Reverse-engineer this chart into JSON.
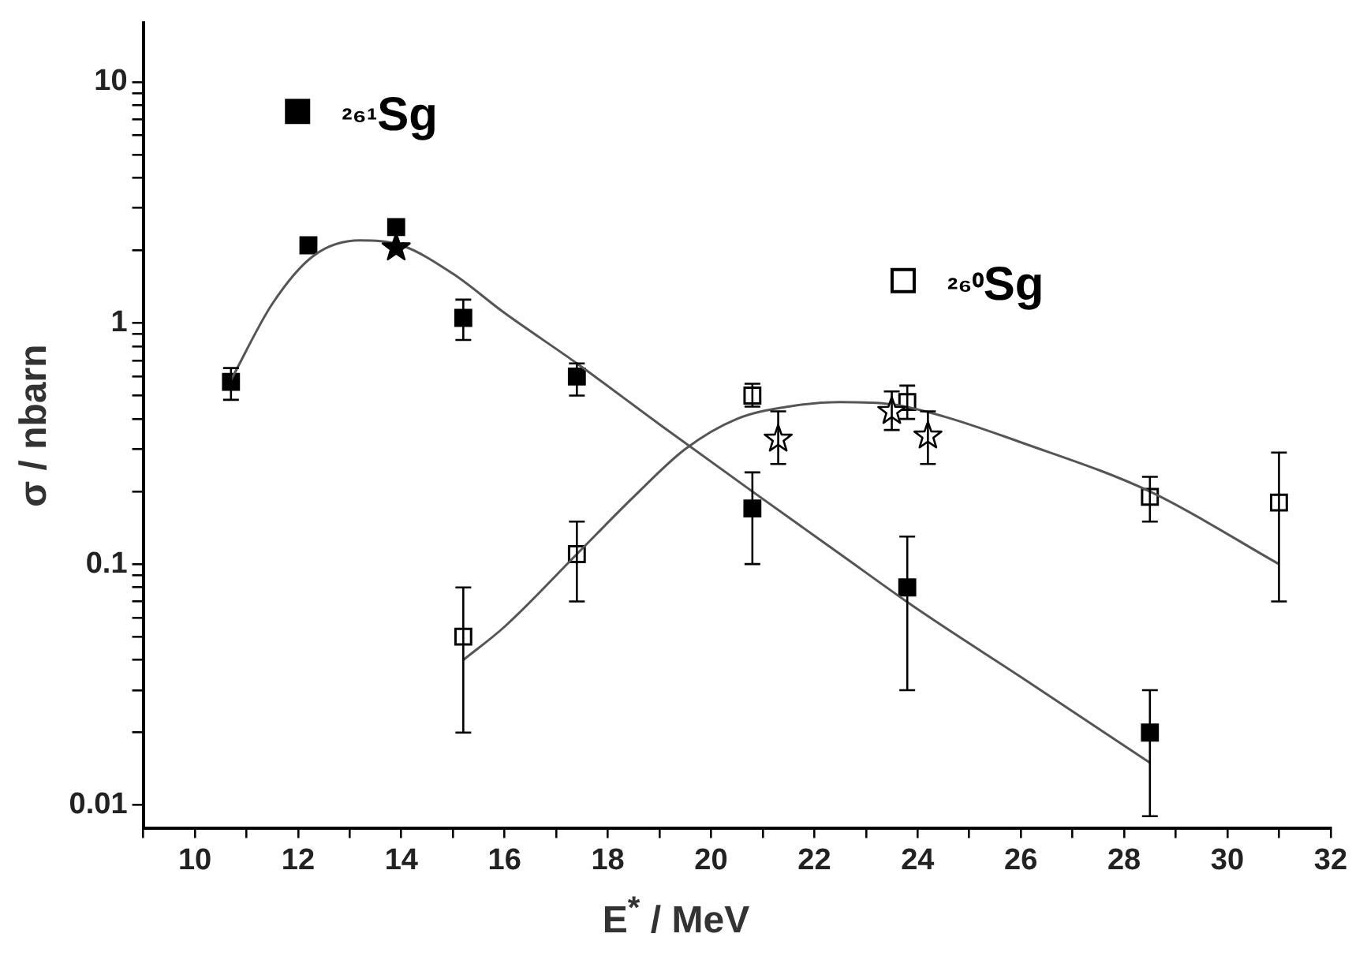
{
  "chart_data": {
    "type": "scatter",
    "xlabel": "E$^{*}$ / MeV",
    "ylabel": "σ / nbarn",
    "log": "y",
    "grid": false,
    "legend": "top left",
    "xlim": [
      9,
      32
    ],
    "ylim": [
      0.008,
      17.6
    ],
    "xticks": [
      {
        "value": 9,
        "label": null
      },
      10,
      {
        "value": 11,
        "label": null
      },
      12,
      {
        "value": 13,
        "label": null
      },
      14,
      {
        "value": 15,
        "label": null
      },
      16,
      {
        "value": 17,
        "label": null
      },
      18,
      {
        "value": 19,
        "label": null
      },
      20,
      {
        "value": 21,
        "label": null
      },
      22,
      {
        "value": 23,
        "label": null
      },
      24,
      {
        "value": 25,
        "label": null
      },
      26,
      {
        "value": 27,
        "label": null
      },
      28,
      {
        "value": 29,
        "label": null
      },
      30,
      {
        "value": 31,
        "label": null
      },
      32
    ],
    "yticks": [
      {
        "value": 0.01,
        "label": "0.01"
      },
      {
        "value": 0.02,
        "label": null
      },
      {
        "value": 0.03,
        "label": null
      },
      {
        "value": 0.04,
        "label": null
      },
      {
        "value": 0.05,
        "label": null
      },
      {
        "value": 0.06,
        "label": null
      },
      {
        "value": 0.07,
        "label": null
      },
      {
        "value": 0.08,
        "label": null
      },
      {
        "value": 0.09,
        "label": null
      },
      {
        "value": 0.1,
        "label": "0.1"
      },
      {
        "value": 0.2,
        "label": null
      },
      {
        "value": 0.3,
        "label": null
      },
      {
        "value": 0.4,
        "label": null
      },
      {
        "value": 0.5,
        "label": null
      },
      {
        "value": 0.6,
        "label": null
      },
      {
        "value": 0.7,
        "label": null
      },
      {
        "value": 0.8,
        "label": null
      },
      {
        "value": 0.9,
        "label": null
      },
      1,
      {
        "value": 2,
        "label": null
      },
      {
        "value": 3,
        "label": null
      },
      {
        "value": 4,
        "label": null
      },
      {
        "value": 5,
        "label": null
      },
      {
        "value": 6,
        "label": null
      },
      {
        "value": 7,
        "label": null
      },
      {
        "value": 8,
        "label": null
      },
      {
        "value": 9,
        "label": null
      },
      10
    ],
    "series": [
      {
        "type": "line",
        "color": "#555555",
        "marker": "none",
        "x": [
          10.7,
          11.5,
          12.3,
          13.2,
          14,
          15,
          16,
          17.4,
          19,
          20.8,
          22.5,
          24,
          26,
          28.5
        ],
        "values": [
          0.58,
          1.2,
          1.9,
          2.2,
          2.1,
          1.6,
          1.1,
          0.68,
          0.38,
          0.2,
          0.11,
          0.065,
          0.034,
          0.015
        ]
      },
      {
        "type": "line",
        "color": "#555555",
        "marker": "none",
        "x": [
          15.2,
          16,
          17.4,
          18.5,
          19.5,
          20.5,
          21.5,
          22.5,
          23.5,
          24.5,
          26,
          28.5,
          31
        ],
        "values": [
          0.04,
          0.055,
          0.11,
          0.19,
          0.3,
          0.4,
          0.45,
          0.47,
          0.46,
          0.41,
          0.32,
          0.2,
          0.1
        ]
      },
      {
        "name": "²⁶¹Sg",
        "color": "#000000",
        "marker": "square",
        "x": [
          10.7,
          12.2,
          13.9,
          15.2,
          17.4,
          20.8,
          23.8,
          28.5
        ],
        "values": [
          0.57,
          2.1,
          2.5,
          1.05,
          0.6,
          0.17,
          0.08,
          0.02
        ],
        "errors": [
          [
            0.48,
            0.65
          ],
          null,
          null,
          [
            0.85,
            1.25
          ],
          [
            0.5,
            0.68
          ],
          [
            0.1,
            0.24
          ],
          [
            0.03,
            0.13
          ],
          [
            0.009,
            0.03
          ]
        ]
      },
      {
        "color": "#000000",
        "marker": "star",
        "x": [
          13.9
        ],
        "values": [
          2.05
        ]
      },
      {
        "name": "²⁶⁰Sg",
        "color": "#ffffff",
        "marker": "square",
        "x": [
          15.2,
          17.4,
          20.8,
          23.8,
          28.5,
          31
        ],
        "values": [
          0.05,
          0.11,
          0.5,
          0.47,
          0.19,
          0.18
        ],
        "errors": [
          [
            0.02,
            0.08
          ],
          [
            0.07,
            0.15
          ],
          [
            0.45,
            0.56
          ],
          [
            0.4,
            0.55
          ],
          [
            0.15,
            0.23
          ],
          [
            0.07,
            0.29
          ]
        ]
      },
      {
        "color": "#ffffff",
        "marker": "star",
        "x": [
          21.3,
          23.5,
          24.2
        ],
        "values": [
          0.33,
          0.43,
          0.34
        ],
        "errors": [
          [
            0.26,
            0.43
          ],
          [
            0.36,
            0.52
          ],
          [
            0.26,
            0.43
          ]
        ]
      }
    ]
  }
}
